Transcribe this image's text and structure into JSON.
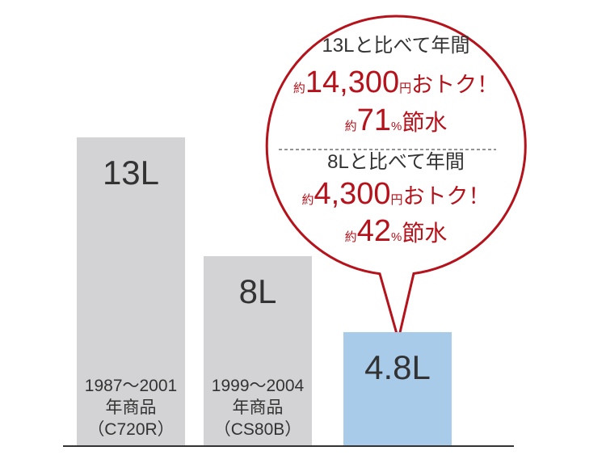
{
  "chart_data": {
    "type": "bar",
    "categories": [
      [
        "1987〜2001",
        "年商品",
        "（C720R）"
      ],
      [
        "1999〜2004",
        "年商品",
        "（CS80B）"
      ],
      null
    ],
    "values": [
      13,
      8,
      4.8
    ],
    "value_labels": [
      "13L",
      "8L",
      "4.8L"
    ],
    "colors": [
      "#d3d3d5",
      "#d3d3d5",
      "#a8cbea"
    ],
    "callout": [
      {
        "heading": "13Lと比べて年間",
        "lines": [
          [
            "約",
            "14,300",
            "円",
            "おトク！"
          ],
          [
            "約",
            "71",
            "%",
            "節水"
          ]
        ]
      },
      {
        "heading": "8Lと比べて年間",
        "lines": [
          [
            "約",
            "4,300",
            "円",
            "おトク！"
          ],
          [
            "約",
            "42",
            "%",
            "節水"
          ]
        ]
      }
    ]
  }
}
